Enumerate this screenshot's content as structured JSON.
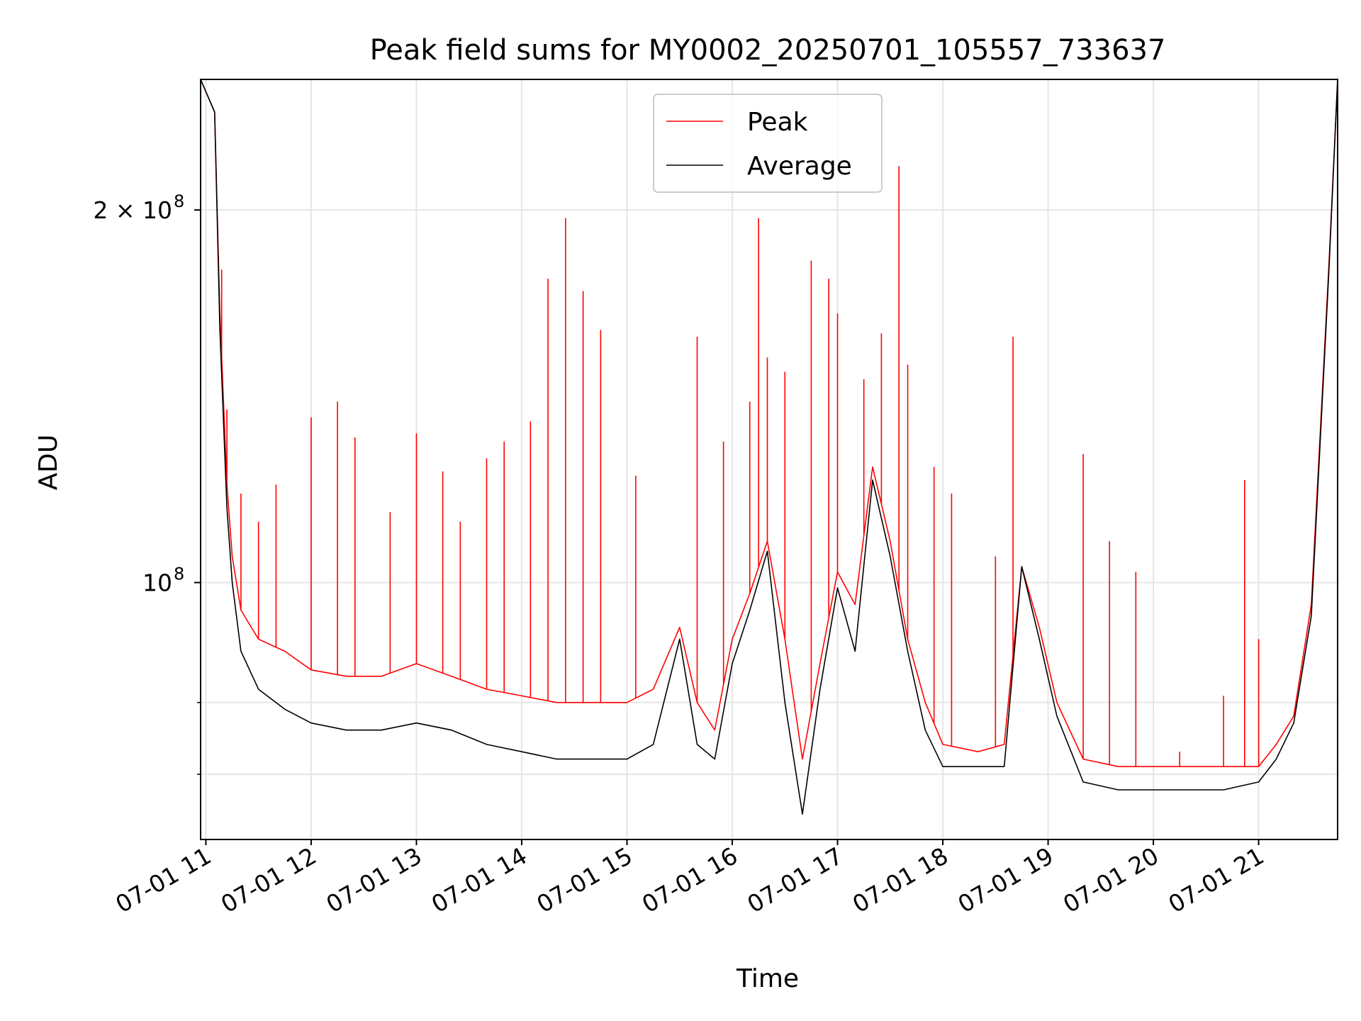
{
  "chart_data": {
    "type": "line",
    "title": "Peak field sums for MY0002_20250701_105557_733637",
    "xlabel": "Time",
    "ylabel": "ADU",
    "y_scale": "log",
    "grid": true,
    "legend_placement": "upper center",
    "xlim": [
      "2025-07-01T10:57",
      "2025-07-01T21:45"
    ],
    "ylim": [
      62000000,
      255000000
    ],
    "x_ticks": [
      "07-01 11",
      "07-01 12",
      "07-01 13",
      "07-01 14",
      "07-01 15",
      "07-01 16",
      "07-01 17",
      "07-01 18",
      "07-01 19",
      "07-01 20",
      "07-01 21"
    ],
    "y_ticks": [
      {
        "value": 100000000,
        "label_base": "10",
        "label_exp": "8"
      },
      {
        "value": 200000000,
        "label_base": "2 × 10",
        "label_exp": "8"
      }
    ],
    "y_minor_ticks": [
      70000000,
      80000000
    ],
    "series": [
      {
        "name": "Peak",
        "color": "#ff0000",
        "x": [
          "10:57",
          "11:05",
          "11:08",
          "11:12",
          "11:15",
          "11:20",
          "11:30",
          "11:45",
          "12:00",
          "12:20",
          "12:40",
          "13:00",
          "13:20",
          "13:40",
          "14:00",
          "14:20",
          "14:40",
          "15:00",
          "15:15",
          "15:30",
          "15:40",
          "15:50",
          "16:00",
          "16:10",
          "16:20",
          "16:30",
          "16:40",
          "16:50",
          "17:00",
          "17:10",
          "17:20",
          "17:30",
          "17:40",
          "17:50",
          "18:00",
          "18:20",
          "18:35",
          "18:45",
          "18:55",
          "19:05",
          "19:20",
          "19:40",
          "20:00",
          "20:20",
          "20:40",
          "21:00",
          "21:10",
          "21:20",
          "21:30",
          "21:40",
          "21:45"
        ],
        "y": [
          255000000,
          240000000,
          165000000,
          120000000,
          105000000,
          95000000,
          90000000,
          88000000,
          85000000,
          84000000,
          84000000,
          86000000,
          84000000,
          82000000,
          81000000,
          80000000,
          80000000,
          80000000,
          82000000,
          92000000,
          80000000,
          76000000,
          90000000,
          98000000,
          108000000,
          90000000,
          72000000,
          86000000,
          102000000,
          96000000,
          124000000,
          108000000,
          90000000,
          80000000,
          74000000,
          73000000,
          74000000,
          103000000,
          92000000,
          80000000,
          72000000,
          71000000,
          71000000,
          71000000,
          71000000,
          71000000,
          74000000,
          78000000,
          96000000,
          180000000,
          255000000
        ],
        "spikes": [
          [
            "11:09",
            179000000
          ],
          [
            "11:12",
            138000000
          ],
          [
            "11:20",
            118000000
          ],
          [
            "11:30",
            112000000
          ],
          [
            "11:40",
            120000000
          ],
          [
            "12:00",
            136000000
          ],
          [
            "12:15",
            140000000
          ],
          [
            "12:25",
            131000000
          ],
          [
            "12:45",
            114000000
          ],
          [
            "13:00",
            132000000
          ],
          [
            "13:15",
            123000000
          ],
          [
            "13:25",
            112000000
          ],
          [
            "13:40",
            126000000
          ],
          [
            "13:50",
            130000000
          ],
          [
            "14:05",
            135000000
          ],
          [
            "14:15",
            176000000
          ],
          [
            "14:25",
            197000000
          ],
          [
            "14:35",
            172000000
          ],
          [
            "14:45",
            160000000
          ],
          [
            "15:05",
            122000000
          ],
          [
            "15:40",
            158000000
          ],
          [
            "15:55",
            130000000
          ],
          [
            "16:10",
            140000000
          ],
          [
            "16:15",
            197000000
          ],
          [
            "16:20",
            152000000
          ],
          [
            "16:30",
            148000000
          ],
          [
            "16:45",
            182000000
          ],
          [
            "16:55",
            176000000
          ],
          [
            "17:00",
            165000000
          ],
          [
            "17:15",
            146000000
          ],
          [
            "17:25",
            159000000
          ],
          [
            "17:35",
            217000000
          ],
          [
            "17:40",
            150000000
          ],
          [
            "17:55",
            124000000
          ],
          [
            "18:05",
            118000000
          ],
          [
            "18:30",
            105000000
          ],
          [
            "18:40",
            158000000
          ],
          [
            "19:20",
            127000000
          ],
          [
            "19:35",
            108000000
          ],
          [
            "19:50",
            102000000
          ],
          [
            "20:15",
            73000000
          ],
          [
            "20:40",
            81000000
          ],
          [
            "20:52",
            121000000
          ],
          [
            "21:00",
            90000000
          ]
        ]
      },
      {
        "name": "Average",
        "color": "#000000",
        "x": [
          "10:57",
          "11:05",
          "11:08",
          "11:12",
          "11:15",
          "11:20",
          "11:30",
          "11:45",
          "12:00",
          "12:20",
          "12:40",
          "13:00",
          "13:20",
          "13:40",
          "14:00",
          "14:20",
          "14:40",
          "15:00",
          "15:15",
          "15:30",
          "15:40",
          "15:50",
          "16:00",
          "16:10",
          "16:20",
          "16:30",
          "16:40",
          "16:50",
          "17:00",
          "17:10",
          "17:20",
          "17:30",
          "17:40",
          "17:50",
          "18:00",
          "18:20",
          "18:35",
          "18:45",
          "18:55",
          "19:05",
          "19:20",
          "19:40",
          "20:00",
          "20:20",
          "20:40",
          "21:00",
          "21:10",
          "21:20",
          "21:30",
          "21:40",
          "21:45"
        ],
        "y": [
          255000000,
          240000000,
          160000000,
          115000000,
          100000000,
          88000000,
          82000000,
          79000000,
          77000000,
          76000000,
          76000000,
          77000000,
          76000000,
          74000000,
          73000000,
          72000000,
          72000000,
          72000000,
          74000000,
          90000000,
          74000000,
          72000000,
          86000000,
          95000000,
          106000000,
          80000000,
          65000000,
          82000000,
          99000000,
          88000000,
          121000000,
          105000000,
          88000000,
          76000000,
          71000000,
          71000000,
          71000000,
          103000000,
          90000000,
          78000000,
          69000000,
          68000000,
          68000000,
          68000000,
          68000000,
          69000000,
          72000000,
          77000000,
          94000000,
          178000000,
          255000000
        ]
      }
    ]
  }
}
